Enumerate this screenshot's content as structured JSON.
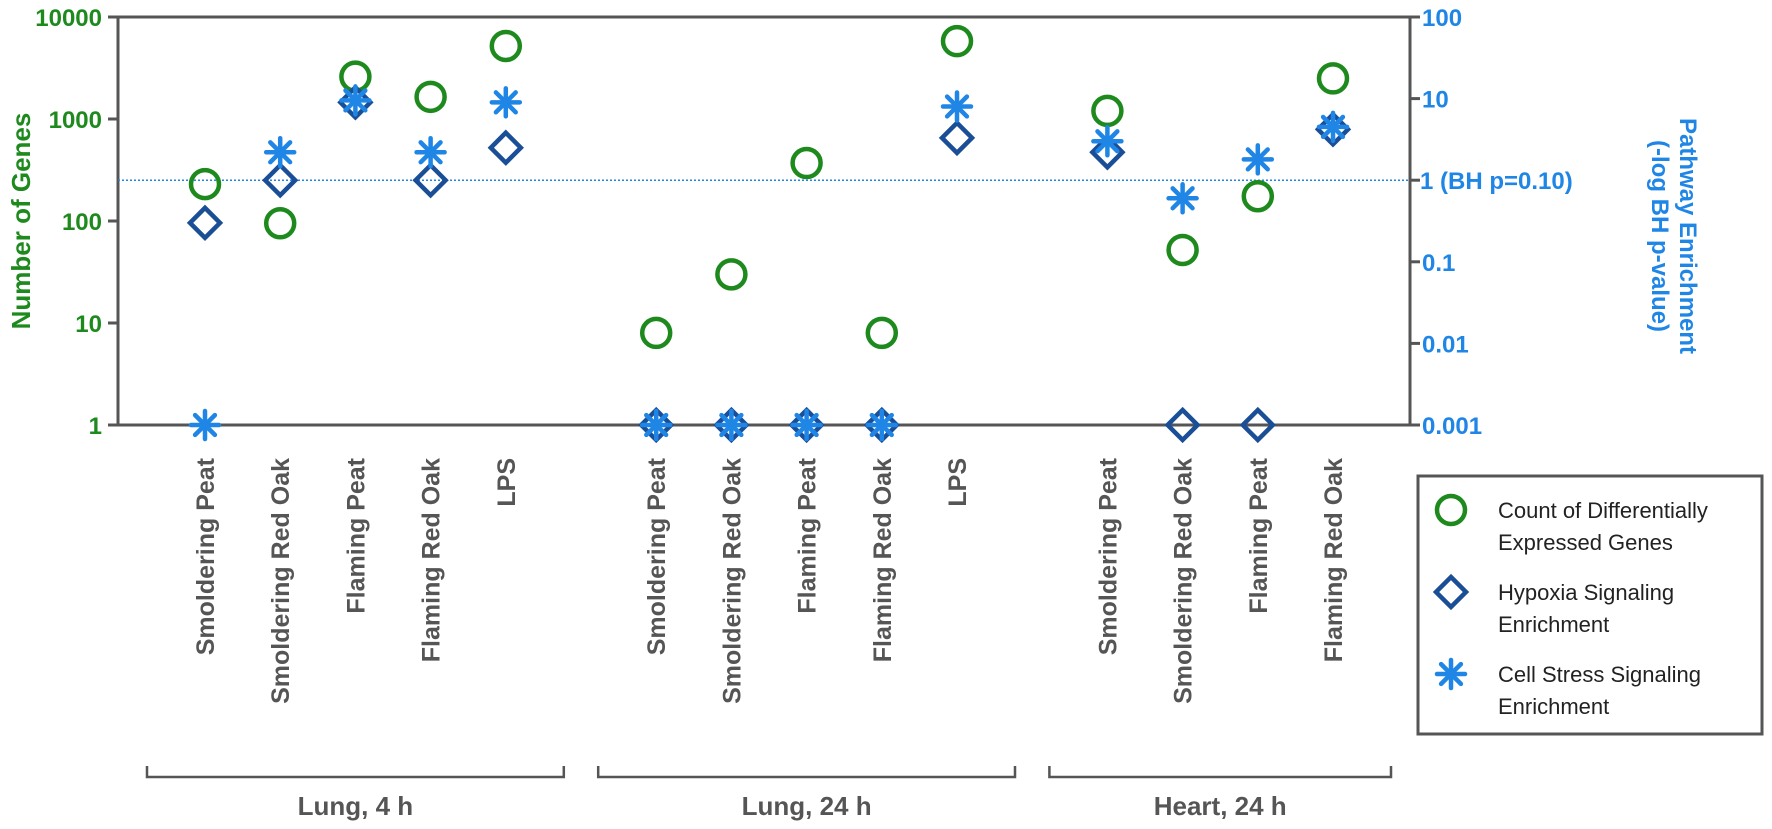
{
  "chart_data": {
    "type": "scatter",
    "title": "",
    "ylabel_left": "Number of Genes",
    "ylabel_right_line1": "Pathway Enrichment",
    "ylabel_right_line2": "(-log BH p-value)",
    "y_left_scale": "log",
    "y_left_range": [
      1,
      10000
    ],
    "y_left_ticks": [
      "1",
      "10",
      "100",
      "1000",
      "10000"
    ],
    "y_right_scale": "log",
    "y_right_range": [
      0.001,
      100
    ],
    "y_right_ticks": [
      "0.001",
      "0.01",
      "0.1",
      "1",
      "10",
      "100"
    ],
    "threshold": {
      "value": 1,
      "axis": "right",
      "label": "1 (BH p=0.10)"
    },
    "grid": false,
    "legend_position": "right",
    "colors": {
      "genes": "#1e8a1e",
      "hypoxia": "#1a4e96",
      "stress": "#1f86e6",
      "threshold": "#1f86e6"
    },
    "groups": [
      {
        "label": "Lung, 4 h",
        "categories": [
          {
            "label": "Smoldering Peat",
            "genes": 230,
            "hypoxia": 0.3,
            "stress": 0.001
          },
          {
            "label": "Smoldering Red Oak",
            "genes": 95,
            "hypoxia": 1.0,
            "stress": 2.2
          },
          {
            "label": "Flaming Peat",
            "genes": 2600,
            "hypoxia": 9.0,
            "stress": 9.5
          },
          {
            "label": "Flaming Red Oak",
            "genes": 1650,
            "hypoxia": 1.0,
            "stress": 2.2
          },
          {
            "label": "LPS",
            "genes": 5200,
            "hypoxia": 2.5,
            "stress": 9.0
          }
        ]
      },
      {
        "label": "Lung, 24 h",
        "categories": [
          {
            "label": "Smoldering Peat",
            "genes": 8,
            "hypoxia": 0.001,
            "stress": 0.001
          },
          {
            "label": "Smoldering Red Oak",
            "genes": 30,
            "hypoxia": 0.001,
            "stress": 0.001
          },
          {
            "label": "Flaming Peat",
            "genes": 370,
            "hypoxia": 0.001,
            "stress": 0.001
          },
          {
            "label": "Flaming Red Oak",
            "genes": 8,
            "hypoxia": 0.001,
            "stress": 0.001
          },
          {
            "label": "LPS",
            "genes": 5800,
            "hypoxia": 3.3,
            "stress": 8.0
          }
        ]
      },
      {
        "label": "Heart, 24 h",
        "categories": [
          {
            "label": "Smoldering Peat",
            "genes": 1200,
            "hypoxia": 2.2,
            "stress": 3.0
          },
          {
            "label": "Smoldering Red Oak",
            "genes": 52,
            "hypoxia": 0.001,
            "stress": 0.6
          },
          {
            "label": "Flaming Peat",
            "genes": 175,
            "hypoxia": 0.001,
            "stress": 1.8
          },
          {
            "label": "Flaming Red Oak",
            "genes": 2500,
            "hypoxia": 4.2,
            "stress": 4.5
          }
        ]
      }
    ],
    "legend": [
      {
        "key": "genes",
        "symbol": "circle",
        "line1": "Count of Differentially",
        "line2": "Expressed Genes"
      },
      {
        "key": "hypoxia",
        "symbol": "diamond",
        "line1": "Hypoxia Signaling",
        "line2": "Enrichment"
      },
      {
        "key": "stress",
        "symbol": "asterisk",
        "line1": "Cell Stress Signaling",
        "line2": "Enrichment"
      }
    ]
  }
}
